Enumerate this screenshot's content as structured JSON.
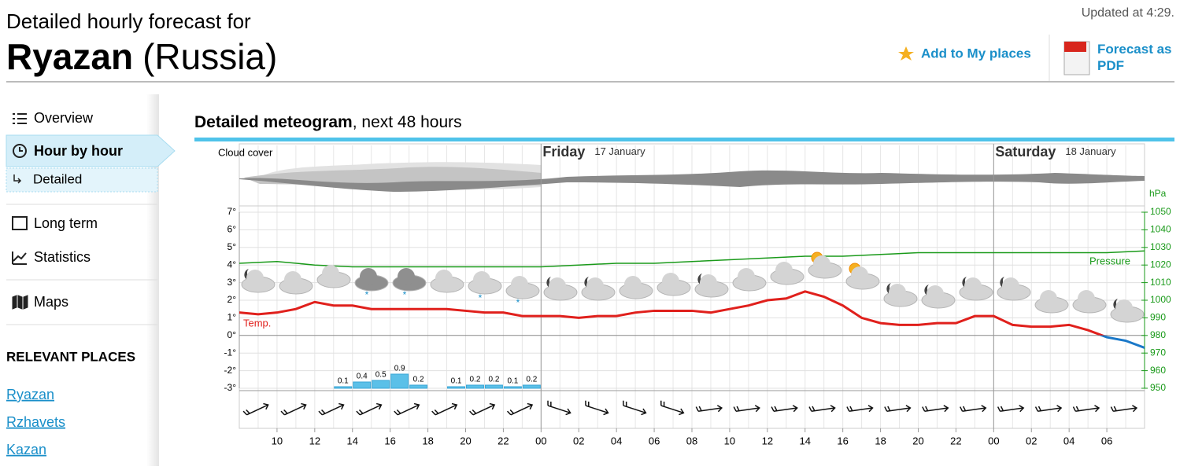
{
  "header": {
    "title": "Detailed hourly forecast for",
    "city": "Ryazan",
    "country": "(Russia)",
    "updated": "Updated at 4:29.",
    "add_place": "Add to My places",
    "pdf": "Forecast as PDF"
  },
  "sidebar": {
    "nav": [
      "Overview",
      "Hour by hour",
      "Detailed",
      "Long term",
      "Statistics",
      "Maps"
    ],
    "places_heading": "RELEVANT PLACES",
    "places": [
      "Ryazan",
      "Rzhavets",
      "Kazan"
    ]
  },
  "section": {
    "title": "Detailed meteogram",
    "subtitle": ", next 48 hours"
  },
  "chart_data": {
    "type": "meteogram",
    "cloud_label": "Cloud cover",
    "days": [
      {
        "name": "Friday",
        "date": "17 January"
      },
      {
        "name": "Saturday",
        "date": "18 January"
      }
    ],
    "temperature": {
      "name": "Temp.",
      "color": "#e0201c",
      "cold_color": "#1a78c8",
      "x": [
        0,
        1,
        2,
        3,
        4,
        5,
        6,
        7,
        8,
        9,
        10,
        11,
        12,
        13,
        14,
        15,
        16,
        17,
        18,
        19,
        20,
        21,
        22,
        23,
        24,
        25,
        26,
        27,
        28,
        29,
        30,
        31,
        32,
        33,
        34,
        35,
        36,
        37,
        38,
        39,
        40,
        41,
        42,
        43,
        44,
        45,
        46,
        47,
        48
      ],
      "values": [
        1.3,
        1.2,
        1.3,
        1.5,
        1.9,
        1.7,
        1.7,
        1.5,
        1.5,
        1.5,
        1.5,
        1.5,
        1.4,
        1.3,
        1.3,
        1.1,
        1.1,
        1.1,
        1.0,
        1.1,
        1.1,
        1.3,
        1.4,
        1.4,
        1.4,
        1.3,
        1.5,
        1.7,
        2.0,
        2.1,
        2.5,
        2.2,
        1.7,
        1.0,
        0.7,
        0.6,
        0.6,
        0.7,
        0.7,
        1.1,
        1.1,
        0.6,
        0.5,
        0.5,
        0.6,
        0.3,
        -0.1,
        -0.3,
        -0.7
      ]
    },
    "pressure": {
      "name": "Pressure",
      "color": "#1a9a1a",
      "axis": "y2",
      "x": [
        0,
        2,
        4,
        6,
        8,
        10,
        12,
        14,
        16,
        18,
        20,
        22,
        24,
        26,
        28,
        30,
        32,
        34,
        36,
        38,
        40,
        42,
        44,
        46,
        48
      ],
      "values": [
        1021,
        1022,
        1020,
        1019,
        1019,
        1019,
        1019,
        1019,
        1019,
        1020,
        1021,
        1021,
        1022,
        1023,
        1024,
        1025,
        1025,
        1026,
        1027,
        1027,
        1027,
        1027,
        1027,
        1027,
        1028
      ]
    },
    "precipitation": {
      "color": "#5bc0e8",
      "x": [
        5,
        6,
        7,
        8,
        9,
        11,
        12,
        13,
        14,
        15
      ],
      "values": [
        0.1,
        0.4,
        0.5,
        0.9,
        0.2,
        0.1,
        0.2,
        0.2,
        0.1,
        0.2
      ]
    },
    "xlim": [
      0,
      48
    ],
    "xticks": [
      {
        "value": 2,
        "label": "10"
      },
      {
        "value": 4,
        "label": "12"
      },
      {
        "value": 6,
        "label": "14"
      },
      {
        "value": 8,
        "label": "16"
      },
      {
        "value": 10,
        "label": "18"
      },
      {
        "value": 12,
        "label": "20"
      },
      {
        "value": 14,
        "label": "22"
      },
      {
        "value": 16,
        "label": "00"
      },
      {
        "value": 18,
        "label": "02"
      },
      {
        "value": 20,
        "label": "04"
      },
      {
        "value": 22,
        "label": "06"
      },
      {
        "value": 24,
        "label": "08"
      },
      {
        "value": 26,
        "label": "10"
      },
      {
        "value": 28,
        "label": "12"
      },
      {
        "value": 30,
        "label": "14"
      },
      {
        "value": 32,
        "label": "16"
      },
      {
        "value": 34,
        "label": "18"
      },
      {
        "value": 36,
        "label": "20"
      },
      {
        "value": 38,
        "label": "22"
      },
      {
        "value": 40,
        "label": "00"
      },
      {
        "value": 42,
        "label": "02"
      },
      {
        "value": 44,
        "label": "04"
      },
      {
        "value": 46,
        "label": "06"
      }
    ],
    "ylim": [
      -3,
      7
    ],
    "yticks": [
      {
        "value": -3,
        "label": "-3°"
      },
      {
        "value": -2,
        "label": "-2°"
      },
      {
        "value": -1,
        "label": "-1°"
      },
      {
        "value": 0,
        "label": "0°"
      },
      {
        "value": 1,
        "label": "1°"
      },
      {
        "value": 2,
        "label": "2°"
      },
      {
        "value": 3,
        "label": "3°"
      },
      {
        "value": 4,
        "label": "4°"
      },
      {
        "value": 5,
        "label": "5°"
      },
      {
        "value": 6,
        "label": "6°"
      },
      {
        "value": 7,
        "label": "7°"
      }
    ],
    "y2label": "hPa",
    "y2lim": [
      950,
      1050
    ],
    "y2ticks": [
      950,
      960,
      970,
      980,
      990,
      1000,
      1010,
      1020,
      1030,
      1040,
      1050
    ],
    "grid": true
  }
}
